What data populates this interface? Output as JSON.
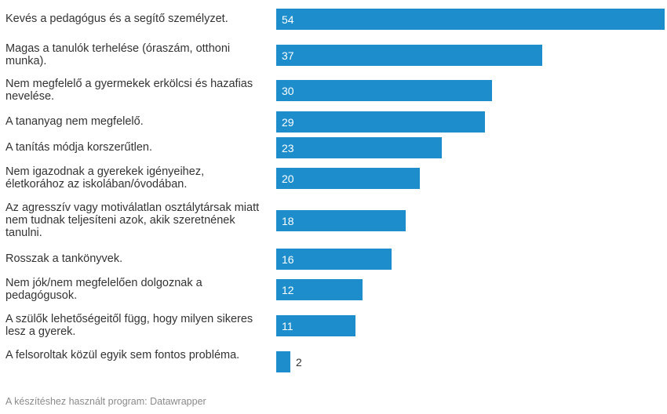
{
  "chart_data": {
    "type": "bar",
    "orientation": "horizontal",
    "categories": [
      "Kevés a pedagógus és a segítő személyzet.",
      "Magas a tanulók terhelése (óraszám, otthoni munka).",
      "Nem megfelelő a gyermekek erkölcsi és hazafias nevelése.",
      "A tananyag nem megfelelő.",
      "A tanítás módja korszerűtlen.",
      "Nem igazodnak a gyerekek igényeihez, életkorához az iskolában/óvodában.",
      "Az agresszív vagy motiválatlan osztálytársak miatt nem tudnak teljesíteni azok, akik szeretnének tanulni.",
      "Rosszak a tankönyvek.",
      "Nem jók/nem megfelelően dolgoznak a pedagógusok.",
      "A szülők lehetőségeitől függ, hogy milyen sikeres lesz a gyerek.",
      "A felsoroltak közül egyik sem fontos probléma."
    ],
    "values": [
      54,
      37,
      30,
      29,
      23,
      20,
      18,
      16,
      12,
      11,
      2
    ],
    "xlim": [
      0,
      54
    ],
    "bar_color": "#1d8dcc",
    "grid": false,
    "legend": "none"
  },
  "footer": "A készítéshez használt program: Datawrapper"
}
